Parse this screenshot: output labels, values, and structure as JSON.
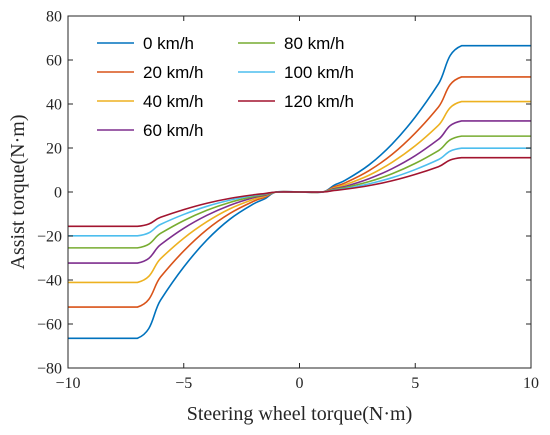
{
  "chart_data": {
    "type": "line",
    "xlabel": "Steering wheel torque(N·m)",
    "ylabel": "Assist torque(N·m)",
    "xlim": [
      -10,
      10
    ],
    "ylim": [
      -80,
      80
    ],
    "xticks": [
      -10,
      -5,
      0,
      5,
      10
    ],
    "yticks": [
      -80,
      -60,
      -40,
      -20,
      0,
      20,
      40,
      60,
      80
    ],
    "xtick_labels": [
      "−10",
      "−5",
      "0",
      "5",
      "10"
    ],
    "ytick_labels": [
      "−80",
      "−60",
      "−40",
      "−20",
      "0",
      "20",
      "40",
      "60",
      "80"
    ],
    "grid": false,
    "legend_position": "top-left",
    "x": [
      -10,
      -7,
      -6,
      -5,
      -4,
      -3,
      -2,
      -1.5,
      -1,
      0,
      1,
      1.5,
      2,
      3,
      4,
      5,
      6,
      7,
      10
    ],
    "series": [
      {
        "name": "0 km/h",
        "color": "#0072BD",
        "values": [
          -66.5,
          -66.5,
          -49.1,
          -34.1,
          -21.8,
          -12.3,
          -5.5,
          -3.1,
          0,
          0,
          0,
          3.1,
          5.5,
          12.3,
          21.8,
          34.1,
          49.1,
          66.5,
          66.5
        ]
      },
      {
        "name": "20 km/h",
        "color": "#D95319",
        "values": [
          -52.3,
          -52.3,
          -38.6,
          -26.8,
          -17.1,
          -9.7,
          -4.3,
          -2.4,
          0,
          0,
          0,
          2.4,
          4.3,
          9.7,
          17.1,
          26.8,
          38.6,
          52.3,
          52.3
        ]
      },
      {
        "name": "40 km/h",
        "color": "#EDB120",
        "values": [
          -41.1,
          -41.1,
          -30.3,
          -21.0,
          -13.5,
          -7.6,
          -3.4,
          -1.9,
          0,
          0,
          0,
          1.9,
          3.4,
          7.6,
          13.5,
          21.0,
          30.3,
          41.1,
          41.1
        ]
      },
      {
        "name": "60 km/h",
        "color": "#7E2F8E",
        "values": [
          -32.3,
          -32.3,
          -23.9,
          -16.5,
          -10.6,
          -6.0,
          -2.6,
          -1.5,
          0,
          0,
          0,
          1.5,
          2.6,
          6.0,
          10.6,
          16.5,
          23.9,
          32.3,
          32.3
        ]
      },
      {
        "name": "80 km/h",
        "color": "#77AC30",
        "values": [
          -25.4,
          -25.4,
          -18.8,
          -13.0,
          -8.3,
          -4.7,
          -2.1,
          -1.2,
          0,
          0,
          0,
          1.2,
          2.1,
          4.7,
          8.3,
          13.0,
          18.8,
          25.4,
          25.4
        ]
      },
      {
        "name": "100 km/h",
        "color": "#4DBEEE",
        "values": [
          -19.9,
          -19.9,
          -14.7,
          -10.2,
          -6.5,
          -3.7,
          -1.6,
          -0.9,
          0,
          0,
          0,
          0.9,
          1.6,
          3.7,
          6.5,
          10.2,
          14.7,
          19.9,
          19.9
        ]
      },
      {
        "name": "120 km/h",
        "color": "#A2142F",
        "values": [
          -15.6,
          -15.6,
          -11.5,
          -8.0,
          -5.1,
          -2.9,
          -1.3,
          -0.7,
          0,
          0,
          0,
          0.7,
          1.3,
          2.9,
          5.1,
          8.0,
          11.5,
          15.6,
          15.6
        ]
      }
    ]
  }
}
